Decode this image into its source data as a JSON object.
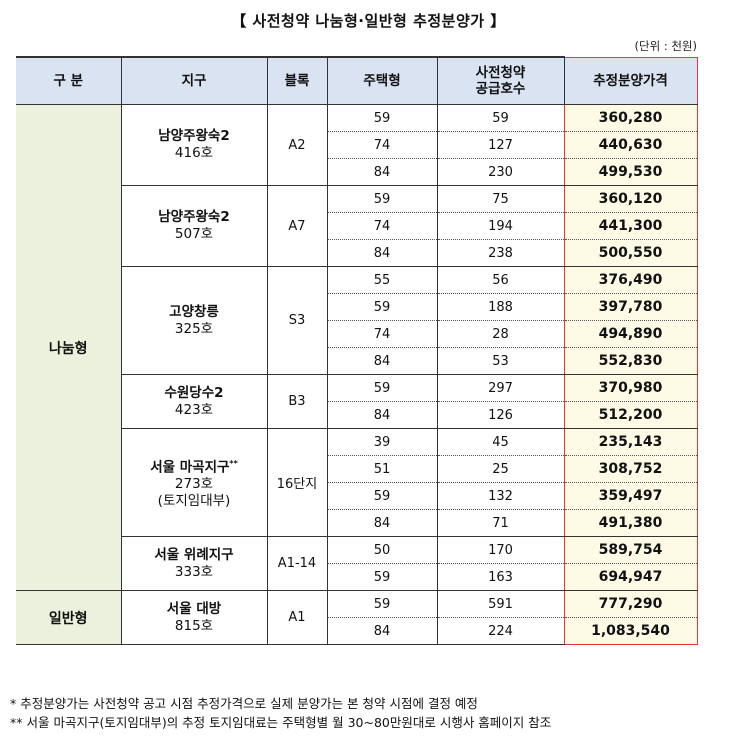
{
  "title": "【 사전청약 나눔형·일반형 추정분양가 】",
  "unit": "(단위 : 천원)",
  "headers": [
    "구 분",
    "지구",
    "블록",
    "주택형",
    "사전청약\n공급호수",
    "추정분양가격"
  ],
  "groups": [
    {
      "label": "나눔형",
      "districts": [
        {
          "name": "남양주왕숙2",
          "sup": "",
          "sub": [
            "416호"
          ],
          "block": "A2",
          "rows": [
            [
              "59",
              "59",
              "360,280"
            ],
            [
              "74",
              "127",
              "440,630"
            ],
            [
              "84",
              "230",
              "499,530"
            ]
          ]
        },
        {
          "name": "남양주왕숙2",
          "sup": "",
          "sub": [
            "507호"
          ],
          "block": "A7",
          "rows": [
            [
              "59",
              "75",
              "360,120"
            ],
            [
              "74",
              "194",
              "441,300"
            ],
            [
              "84",
              "238",
              "500,550"
            ]
          ]
        },
        {
          "name": "고양창릉",
          "sup": "",
          "sub": [
            "325호"
          ],
          "block": "S3",
          "rows": [
            [
              "55",
              "56",
              "376,490"
            ],
            [
              "59",
              "188",
              "397,780"
            ],
            [
              "74",
              "28",
              "494,890"
            ],
            [
              "84",
              "53",
              "552,830"
            ]
          ]
        },
        {
          "name": "수원당수2",
          "sup": "",
          "sub": [
            "423호"
          ],
          "block": "B3",
          "rows": [
            [
              "59",
              "297",
              "370,980"
            ],
            [
              "84",
              "126",
              "512,200"
            ]
          ]
        },
        {
          "name": "서울 마곡지구",
          "sup": "**",
          "sub": [
            "273호",
            "(토지임대부)"
          ],
          "block": "16단지",
          "rows": [
            [
              "39",
              "45",
              "235,143"
            ],
            [
              "51",
              "25",
              "308,752"
            ],
            [
              "59",
              "132",
              "359,497"
            ],
            [
              "84",
              "71",
              "491,380"
            ]
          ]
        },
        {
          "name": "서울 위례지구",
          "sup": "",
          "sub": [
            "333호"
          ],
          "block": "A1-14",
          "rows": [
            [
              "50",
              "170",
              "589,754"
            ],
            [
              "59",
              "163",
              "694,947"
            ]
          ]
        }
      ]
    },
    {
      "label": "일반형",
      "districts": [
        {
          "name": "서울 대방",
          "sup": "",
          "sub": [
            "815호"
          ],
          "block": "A1",
          "rows": [
            [
              "59",
              "591",
              "777,290"
            ],
            [
              "84",
              "224",
              "1,083,540"
            ]
          ]
        }
      ]
    }
  ],
  "notes": [
    "* 추정분양가는 사전청약 공고 시점 추정가격으로 실제 분양가는 본 청약 시점에 결정 예정",
    "** 서울 마곡지구(토지임대부)의 추정 토지임대료는 주택형별 월 30~80만원대로 시행사 홈페이지 참조"
  ],
  "colors": {
    "header_bg": "#d9e3f1",
    "group_bg": "#ebf1dd",
    "price_bg": "#fdfbe6",
    "highlight": "#e53935"
  }
}
